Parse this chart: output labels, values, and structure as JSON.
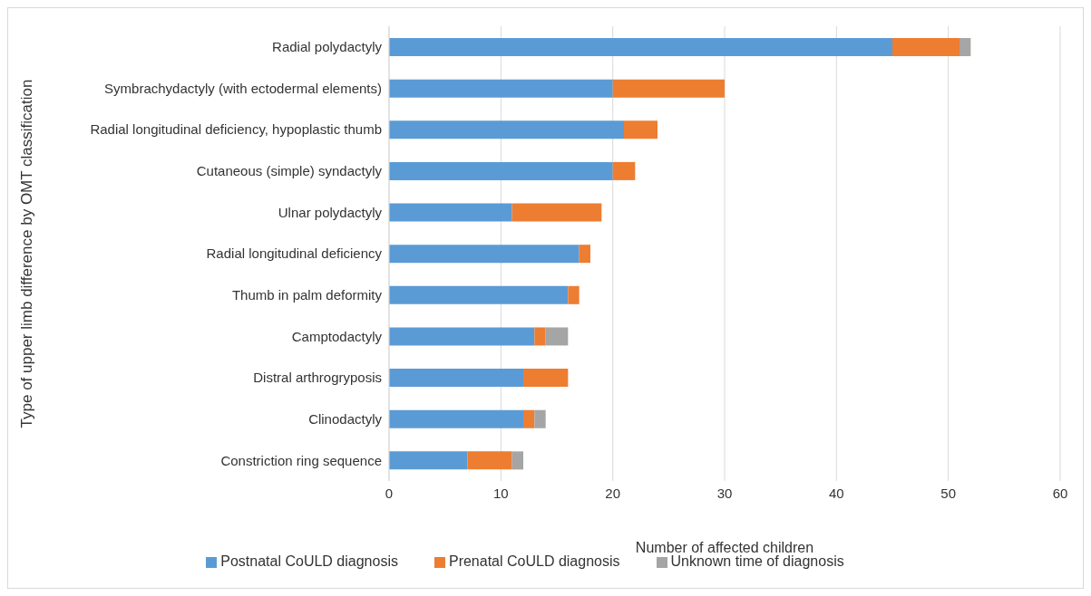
{
  "chart_data": {
    "type": "bar",
    "orientation": "horizontal",
    "stacked": true,
    "xlabel": "Number of affected children",
    "ylabel": "Type of upper limb difference by OMT classification",
    "categories": [
      "Radial polydactyly",
      "Symbrachydactyly (with ectodermal elements)",
      "Radial longitudinal deficiency, hypoplastic thumb",
      "Cutaneous (simple) syndactyly",
      "Ulnar polydactyly",
      "Radial longitudinal deficiency",
      "Thumb in palm deformity",
      "Camptodactyly",
      "Distral arthrogryposis",
      "Clinodactyly",
      "Constriction ring sequence"
    ],
    "series": [
      {
        "name": "Postnatal CoULD diagnosis",
        "color": "#5b9bd5",
        "values": [
          45,
          20,
          21,
          20,
          11,
          17,
          16,
          13,
          12,
          12,
          7
        ]
      },
      {
        "name": "Prenatal CoULD diagnosis",
        "color": "#ed7d31",
        "values": [
          6,
          10,
          3,
          2,
          8,
          1,
          1,
          1,
          4,
          1,
          4
        ]
      },
      {
        "name": "Unknown time of diagnosis",
        "color": "#a5a5a5",
        "values": [
          1,
          null,
          null,
          null,
          null,
          null,
          null,
          2,
          null,
          1,
          1
        ]
      }
    ],
    "xlim": [
      0,
      60
    ],
    "xticks": [
      0,
      10,
      20,
      30,
      40,
      50,
      60
    ],
    "grid": "x",
    "legend": "bottom"
  }
}
